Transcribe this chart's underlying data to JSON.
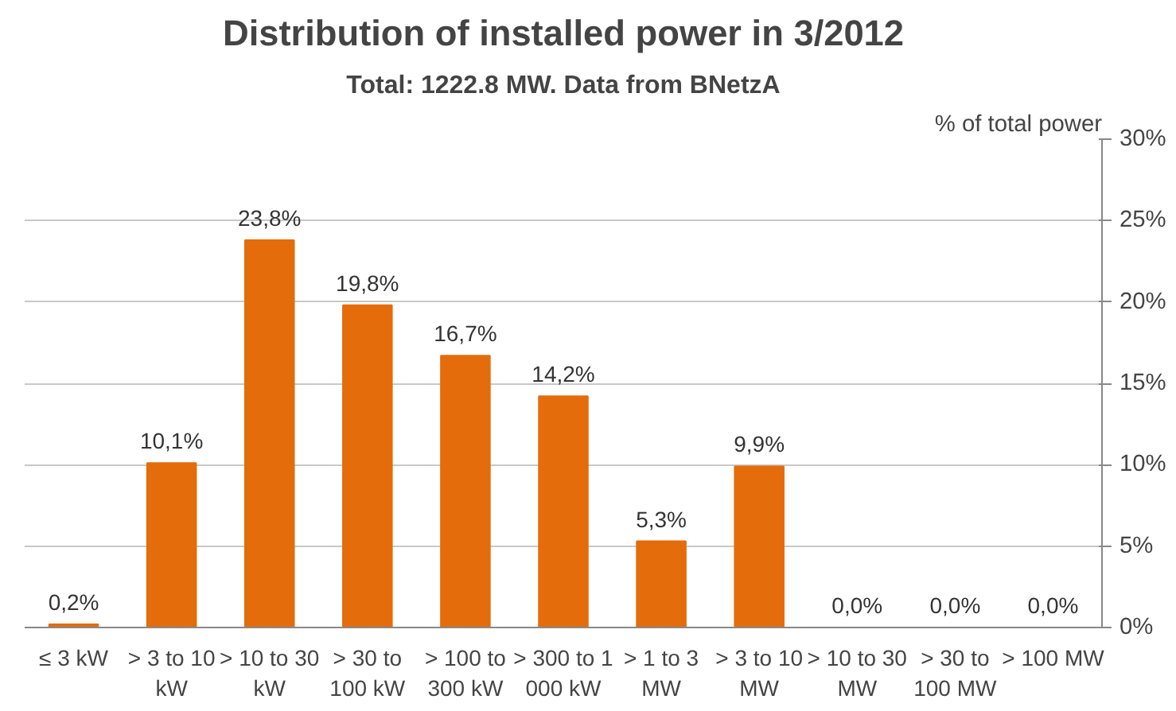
{
  "chart_data": {
    "type": "bar",
    "title": "Distribution of installed power in 3/2012",
    "subtitle": "Total: 1222.8 MW. Data from BNetzA",
    "ylabel": "% of total power",
    "categories": [
      "≤ 3 kW",
      "> 3 to 10 kW",
      "> 10 to 30 kW",
      "> 30 to 100 kW",
      "> 100 to 300 kW",
      "> 300 to 1 000 kW",
      "> 1 to 3 MW",
      "> 3 to 10 MW",
      "> 10 to 30 MW",
      "> 30 to 100 MW",
      "> 100 MW"
    ],
    "values": [
      0.2,
      10.1,
      23.8,
      19.8,
      16.7,
      14.2,
      5.3,
      9.9,
      0.0,
      0.0,
      0.0
    ],
    "value_labels": [
      "0,2%",
      "10,1%",
      "23,8%",
      "19,8%",
      "16,7%",
      "14,2%",
      "5,3%",
      "9,9%",
      "0,0%",
      "0,0%",
      "0,0%"
    ],
    "color": "#e46c0a",
    "ylim": [
      0,
      30
    ],
    "yticks": [
      {
        "value": 0,
        "label": "0%"
      },
      {
        "value": 5,
        "label": "5%"
      },
      {
        "value": 10,
        "label": "10%"
      },
      {
        "value": 15,
        "label": "15%"
      },
      {
        "value": 20,
        "label": "20%"
      },
      {
        "value": 25,
        "label": "25%"
      },
      {
        "value": 30,
        "label": "30%"
      }
    ],
    "grid": "y"
  }
}
